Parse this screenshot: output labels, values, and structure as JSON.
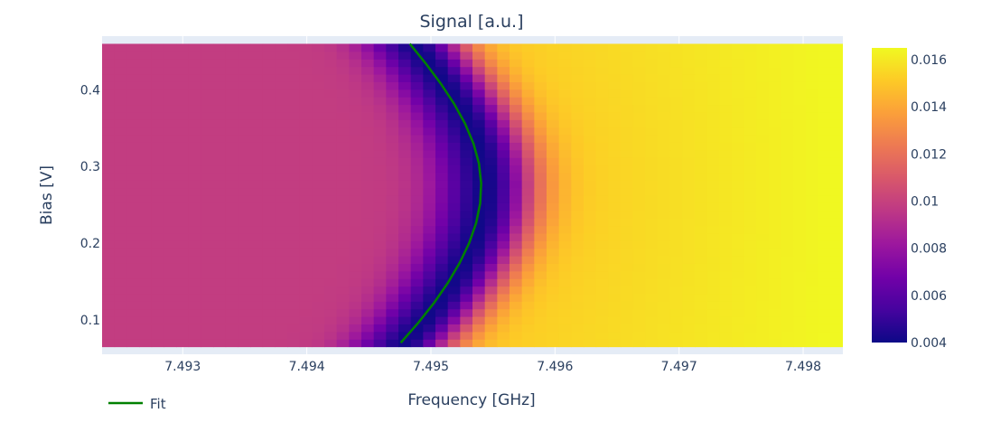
{
  "chart_data": {
    "type": "heatmap",
    "title": "Signal [a.u.]",
    "xlabel": "Frequency [GHz]",
    "ylabel": "Bias [V]",
    "xlim": [
      7.49235,
      7.49832
    ],
    "ylim": [
      0.055,
      0.47
    ],
    "data_x_range": [
      7.49235,
      7.49832
    ],
    "data_y_range": [
      0.065,
      0.46
    ],
    "x_ticks": [
      7.493,
      7.494,
      7.495,
      7.496,
      7.497,
      7.498
    ],
    "x_tick_labels": [
      "7.493",
      "7.494",
      "7.495",
      "7.496",
      "7.497",
      "7.498"
    ],
    "y_ticks": [
      0.1,
      0.2,
      0.3,
      0.4
    ],
    "y_tick_labels": [
      "0.1",
      "0.2",
      "0.3",
      "0.4"
    ],
    "grid": true,
    "colorscale": "plasma",
    "colorbar": {
      "min": 0.004,
      "max": 0.0165,
      "ticks": [
        0.004,
        0.006,
        0.008,
        0.01,
        0.012,
        0.014,
        0.016
      ],
      "tick_labels": [
        "0.004",
        "0.006",
        "0.008",
        "0.01",
        "0.012",
        "0.014",
        "0.016"
      ]
    },
    "grid_size": {
      "nx": 60,
      "ny": 40
    },
    "signal_model": {
      "low_frequency_level": 0.0098,
      "high_frequency_level_start": 0.0148,
      "high_frequency_level_end": 0.0165,
      "dip_minimum": 0.0041,
      "dip_width_ghz": 0.00028
    },
    "series": [
      {
        "name": "Fit",
        "type": "line",
        "color": "#008000",
        "x": [
          7.494757,
          7.494898,
          7.495025,
          7.495136,
          7.495231,
          7.495308,
          7.495364,
          7.495397,
          7.495405,
          7.495387,
          7.495343,
          7.495275,
          7.495186,
          7.49508,
          7.49496,
          7.49483
        ],
        "y": [
          0.07,
          0.096,
          0.122,
          0.148,
          0.174,
          0.2,
          0.226,
          0.252,
          0.278,
          0.304,
          0.33,
          0.356,
          0.382,
          0.408,
          0.434,
          0.46
        ]
      }
    ],
    "legend": {
      "placement": "bottom-left",
      "entries": [
        "Fit"
      ]
    }
  }
}
